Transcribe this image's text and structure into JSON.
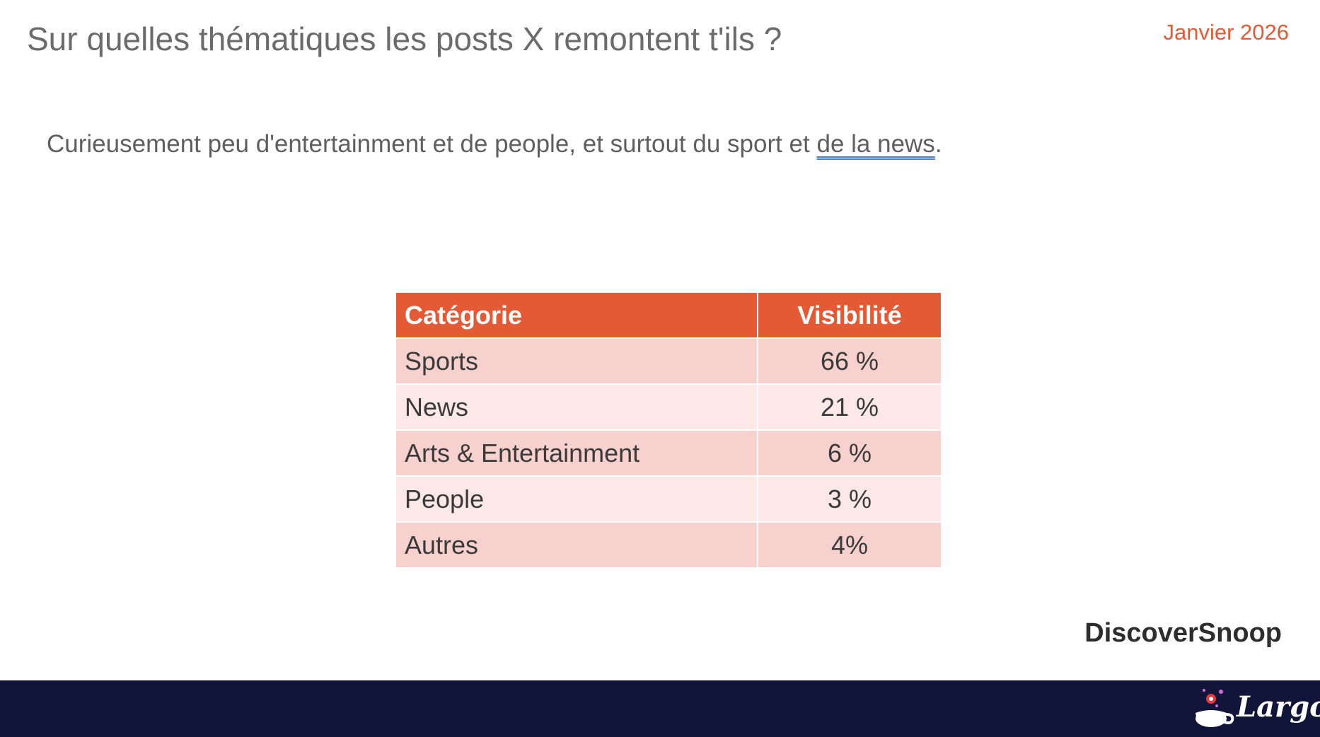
{
  "header": {
    "title": "Sur quelles thématiques les posts X remontent t'ils ?",
    "date": "Janvier 2026"
  },
  "subtitle": {
    "text_before": "Curieusement peu d'entertainment et de people, et surtout du sport et ",
    "link_text": "de la news",
    "text_after": "."
  },
  "table": {
    "headers": [
      "Catégorie",
      "Visibilité"
    ],
    "rows": [
      {
        "category": "Sports",
        "visibility": "66 %"
      },
      {
        "category": "News",
        "visibility": "21 %"
      },
      {
        "category": "Arts & Entertainment",
        "visibility": "6 %"
      },
      {
        "category": "People",
        "visibility": "3 %"
      },
      {
        "category": "Autres",
        "visibility": "4%"
      }
    ]
  },
  "brand": "DiscoverSnoop",
  "footer": {
    "logo_text": "Largow",
    "logo_icon": "coffee-cup-icon"
  },
  "colors": {
    "accent": "#e45a35",
    "row_odd": "#f6d1cd",
    "row_even": "#fbe8e7",
    "footer_bg": "#12153a",
    "text": "#5f5f5f"
  }
}
